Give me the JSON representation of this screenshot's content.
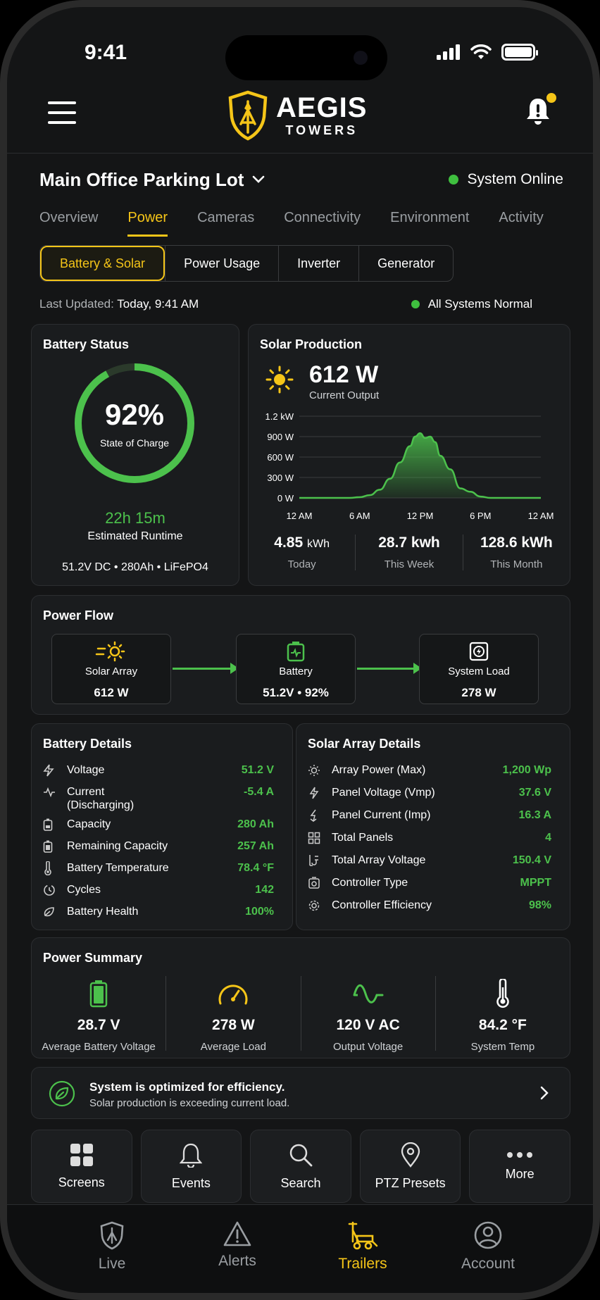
{
  "status_bar": {
    "time": "9:41"
  },
  "header": {
    "logo_name": "AEGIS",
    "logo_sub": "TOWERS"
  },
  "site": {
    "name": "Main Office Parking Lot",
    "status": "System Online"
  },
  "tabs": [
    {
      "label": "Overview"
    },
    {
      "label": "Power"
    },
    {
      "label": "Cameras"
    },
    {
      "label": "Connectivity"
    },
    {
      "label": "Environment"
    },
    {
      "label": "Activity"
    }
  ],
  "subtabs": [
    {
      "label": "Battery & Solar"
    },
    {
      "label": "Power Usage"
    },
    {
      "label": "Inverter"
    },
    {
      "label": "Generator"
    }
  ],
  "update": {
    "prefix": "Last Updated:",
    "value": "Today, 9:41 AM",
    "overall": "All Systems Normal"
  },
  "battery_status": {
    "title": "Battery Status",
    "percent": "92%",
    "percent_value": 92,
    "label": "State of Charge",
    "runtime": "22h 15m",
    "runtime_label": "Estimated Runtime",
    "spec": "51.2V DC  •  280Ah  •  LiFePO4"
  },
  "solar_production": {
    "title": "Solar Production",
    "current": "612 W",
    "current_label": "Current Output",
    "stats": [
      {
        "value": "4.85",
        "unit": "kWh",
        "label": "Today"
      },
      {
        "value": "28.7 kwh",
        "unit": "",
        "label": "This Week"
      },
      {
        "value": "128.6 kWh",
        "unit": "",
        "label": "This Month"
      }
    ]
  },
  "chart_data": {
    "type": "area",
    "x_ticks": [
      "12 AM",
      "6 AM",
      "12 PM",
      "6 PM",
      "12 AM"
    ],
    "y_ticks": [
      "0 W",
      "300 W",
      "600 W",
      "900 W",
      "1.2 kW"
    ],
    "ylim": [
      0,
      1200
    ],
    "x_hours": [
      0,
      5,
      6,
      7,
      8,
      9,
      10,
      11,
      11.5,
      12,
      12.5,
      13,
      13.5,
      14,
      15,
      16,
      17,
      18,
      19,
      24
    ],
    "values": [
      0,
      0,
      10,
      40,
      120,
      280,
      520,
      760,
      900,
      950,
      880,
      900,
      820,
      620,
      420,
      140,
      90,
      20,
      0,
      0
    ],
    "grid": true
  },
  "power_flow": {
    "title": "Power Flow",
    "nodes": [
      {
        "name": "Solar Array",
        "value": "612 W"
      },
      {
        "name": "Battery",
        "value": "51.2V • 92%"
      },
      {
        "name": "System Load",
        "value": "278 W"
      }
    ]
  },
  "battery_details": {
    "title": "Battery Details",
    "rows": [
      {
        "icon": "bolt-icon",
        "label": "Voltage",
        "value": "51.2 V"
      },
      {
        "icon": "current-icon",
        "label": "Current (Discharging)",
        "value": "-5.4 A"
      },
      {
        "icon": "battery-icon",
        "label": "Capacity",
        "value": "280 Ah"
      },
      {
        "icon": "battery-icon",
        "label": "Remaining Capacity",
        "value": "257 Ah"
      },
      {
        "icon": "thermometer-icon",
        "label": "Battery Temperature",
        "value": "78.4 °F"
      },
      {
        "icon": "cycles-icon",
        "label": "Cycles",
        "value": "142"
      },
      {
        "icon": "health-icon",
        "label": "Battery Health",
        "value": "100%"
      }
    ]
  },
  "solar_details": {
    "title": "Solar Array Details",
    "rows": [
      {
        "icon": "sun-icon",
        "label": "Array Power (Max)",
        "value": "1,200 Wp"
      },
      {
        "icon": "voltage-icon",
        "label": "Panel Voltage (Vmp)",
        "value": "37.6 V"
      },
      {
        "icon": "current-icon",
        "label": "Panel Current (Imp)",
        "value": "16.3 A"
      },
      {
        "icon": "grid-icon",
        "label": "Total Panels",
        "value": "4"
      },
      {
        "icon": "plug-icon",
        "label": "Total Array Voltage",
        "value": "150.4 V"
      },
      {
        "icon": "controller-icon",
        "label": "Controller Type",
        "value": "MPPT"
      },
      {
        "icon": "gear-icon",
        "label": "Controller Efficiency",
        "value": "98%"
      }
    ]
  },
  "power_summary": {
    "title": "Power Summary",
    "items": [
      {
        "value": "28.7 V",
        "label": "Average Battery Voltage"
      },
      {
        "value": "278 W",
        "label": "Average Load"
      },
      {
        "value": "120 V AC",
        "label": "Output Voltage"
      },
      {
        "value": "84.2 °F",
        "label": "System Temp"
      }
    ]
  },
  "banner": {
    "title": "System is optimized for efficiency.",
    "subtitle": "Solar production is exceeding current load."
  },
  "quick_actions": [
    {
      "label": "Screens"
    },
    {
      "label": "Events"
    },
    {
      "label": "Search"
    },
    {
      "label": "PTZ Presets"
    },
    {
      "label": "More"
    }
  ],
  "tabbar": [
    {
      "label": "Live"
    },
    {
      "label": "Alerts"
    },
    {
      "label": "Trailers"
    },
    {
      "label": "Account"
    }
  ],
  "colors": {
    "accent": "#f5c518",
    "positive": "#4cc14c",
    "background": "#141516",
    "card": "#1a1c1e"
  }
}
